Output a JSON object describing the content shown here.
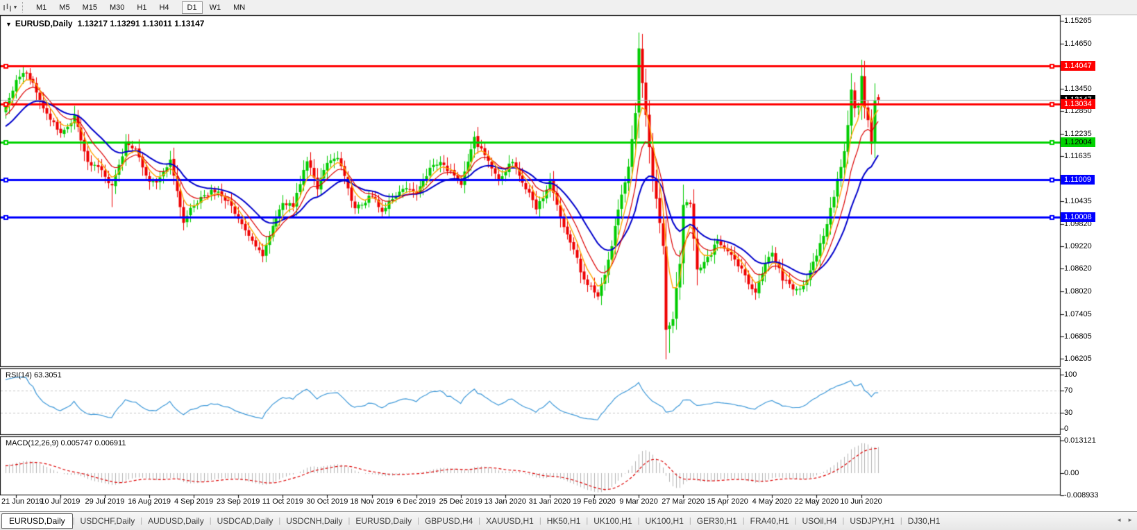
{
  "icons": {
    "dropdown_caret": "▾",
    "title_caret": "▼",
    "tab_scroll_left": "◄",
    "tab_scroll_right": "►"
  },
  "toolbar": {
    "timeframes": [
      "M1",
      "M5",
      "M15",
      "M30",
      "H1",
      "H4",
      "D1",
      "W1",
      "MN"
    ],
    "active_timeframe": "D1"
  },
  "chart": {
    "symbol": "EURUSD,Daily",
    "ohlc_text": "1.13217 1.13291 1.13011 1.13147"
  },
  "price_axis": {
    "ticks": [
      "1.15265",
      "1.14650",
      "1.13450",
      "1.12850",
      "1.12235",
      "1.11635",
      "1.10435",
      "1.09820",
      "1.09220",
      "1.08620",
      "1.08020",
      "1.07405",
      "1.06805",
      "1.06205"
    ]
  },
  "hlines": [
    {
      "price": 1.14047,
      "label": "1.14047",
      "color": "#ff0000",
      "text_color": "#ffffff"
    },
    {
      "price": 1.13034,
      "label": "1.13034",
      "color": "#ff0000",
      "text_color": "#ffffff"
    },
    {
      "price": 1.12004,
      "label": "1.12004",
      "color": "#00d200",
      "text_color": "#000000"
    },
    {
      "price": 1.11009,
      "label": "1.11009",
      "color": "#0000ff",
      "text_color": "#ffffff"
    },
    {
      "price": 1.10008,
      "label": "1.10008",
      "color": "#0000ff",
      "text_color": "#ffffff"
    }
  ],
  "current_price": {
    "value": 1.13147,
    "label": "1.13147"
  },
  "rsi": {
    "label": "RSI(14) 63.3051",
    "value": 63.3051,
    "ticks": [
      {
        "v": 100,
        "text": "100"
      },
      {
        "v": 70,
        "text": "70"
      },
      {
        "v": 30,
        "text": "30"
      },
      {
        "v": 0,
        "text": "0"
      }
    ],
    "dashed_levels": [
      70,
      30
    ]
  },
  "macd": {
    "label": "MACD(12,26,9) 0.005747 0.006911",
    "main_value": 0.005747,
    "signal_value": 0.006911,
    "ticks": [
      {
        "v": 0.013121,
        "text": "0.013121"
      },
      {
        "v": 0,
        "text": "0.00"
      },
      {
        "v": -0.008933,
        "text": "-0.008933"
      }
    ]
  },
  "date_axis": {
    "labels": [
      {
        "i": 3,
        "text": "21 Jun 2019"
      },
      {
        "i": 16,
        "text": "10 Jul 2019"
      },
      {
        "i": 29,
        "text": "29 Jul 2019"
      },
      {
        "i": 42,
        "text": "16 Aug 2019"
      },
      {
        "i": 55,
        "text": "4 Sep 2019"
      },
      {
        "i": 68,
        "text": "23 Sep 2019"
      },
      {
        "i": 81,
        "text": "11 Oct 2019"
      },
      {
        "i": 94,
        "text": "30 Oct 2019"
      },
      {
        "i": 107,
        "text": "18 Nov 2019"
      },
      {
        "i": 120,
        "text": "6 Dec 2019"
      },
      {
        "i": 133,
        "text": "25 Dec 2019"
      },
      {
        "i": 146,
        "text": "13 Jan 2020"
      },
      {
        "i": 159,
        "text": "31 Jan 2020"
      },
      {
        "i": 172,
        "text": "19 Feb 2020"
      },
      {
        "i": 185,
        "text": "9 Mar 2020"
      },
      {
        "i": 198,
        "text": "27 Mar 2020"
      },
      {
        "i": 211,
        "text": "15 Apr 2020"
      },
      {
        "i": 224,
        "text": "4 May 2020"
      },
      {
        "i": 237,
        "text": "22 May 2020"
      },
      {
        "i": 250,
        "text": "10 Jun 2020"
      }
    ]
  },
  "tabs": {
    "active_index": 0,
    "items": [
      "EURUSD,Daily",
      "USDCHF,Daily",
      "AUDUSD,Daily",
      "USDCAD,Daily",
      "USDCNH,Daily",
      "EURUSD,Daily",
      "GBPUSD,H4",
      "XAUUSD,H1",
      "HK50,H1",
      "UK100,H1",
      "UK100,H1",
      "GER30,H1",
      "FRA40,H1",
      "USOil,H4",
      "USDJPY,H1",
      "DJ30,H1"
    ]
  },
  "colors": {
    "bull": "#00cc00",
    "bear": "#ee0000",
    "ma_fast": "#ffa500",
    "ma_mid": "#dd0000",
    "ma_slow": "#0000cc",
    "current_price_line": "#a8a8a8",
    "rsi_line": "#3e99d9",
    "level_dash": "#c6c6c6",
    "macd_hist": "#b4b4b4",
    "macd_signal": "#dd0000",
    "panel_border": "#000000"
  },
  "chart_data": {
    "type": "candlestick",
    "symbol": "EURUSD",
    "timeframe": "Daily",
    "visible_range": {
      "start": "18 Jun 2019",
      "end": "16 Jun 2020"
    },
    "price_axis_range": [
      1.0598,
      1.1541
    ],
    "candle_count": 256,
    "last_candle": {
      "open": 1.13217,
      "high": 1.13291,
      "low": 1.13011,
      "close": 1.13147
    },
    "price_anchors": [
      [
        -30,
        1.114
      ],
      [
        -15,
        1.1185
      ],
      [
        -8,
        1.127
      ],
      [
        -1,
        1.129
      ],
      [
        0,
        1.1295
      ],
      [
        3,
        1.137
      ],
      [
        5,
        1.139
      ],
      [
        8,
        1.1365
      ],
      [
        11,
        1.1285
      ],
      [
        16,
        1.1225
      ],
      [
        20,
        1.127
      ],
      [
        24,
        1.115
      ],
      [
        29,
        1.1115
      ],
      [
        31,
        1.108
      ],
      [
        35,
        1.12
      ],
      [
        38,
        1.118
      ],
      [
        42,
        1.109
      ],
      [
        45,
        1.11
      ],
      [
        48,
        1.116
      ],
      [
        52,
        1.099
      ],
      [
        55,
        1.1035
      ],
      [
        58,
        1.106
      ],
      [
        61,
        1.107
      ],
      [
        65,
        1.104
      ],
      [
        68,
        1.0995
      ],
      [
        72,
        1.094
      ],
      [
        75,
        1.0895
      ],
      [
        78,
        1.097
      ],
      [
        81,
        1.104
      ],
      [
        84,
        1.103
      ],
      [
        88,
        1.115
      ],
      [
        91,
        1.108
      ],
      [
        94,
        1.115
      ],
      [
        97,
        1.1165
      ],
      [
        102,
        1.102
      ],
      [
        107,
        1.106
      ],
      [
        110,
        1.1015
      ],
      [
        114,
        1.106
      ],
      [
        117,
        1.1078
      ],
      [
        120,
        1.106
      ],
      [
        124,
        1.113
      ],
      [
        127,
        1.1145
      ],
      [
        130,
        1.112
      ],
      [
        133,
        1.109
      ],
      [
        137,
        1.1212
      ],
      [
        140,
        1.116
      ],
      [
        144,
        1.1105
      ],
      [
        148,
        1.115
      ],
      [
        151,
        1.1095
      ],
      [
        155,
        1.1023
      ],
      [
        159,
        1.1093
      ],
      [
        162,
        1.1
      ],
      [
        166,
        1.0915
      ],
      [
        169,
        1.0831
      ],
      [
        173,
        1.0788
      ],
      [
        176,
        1.088
      ],
      [
        179,
        1.1026
      ],
      [
        182,
        1.1135
      ],
      [
        184,
        1.1285
      ],
      [
        185,
        1.145
      ],
      [
        187,
        1.127
      ],
      [
        189,
        1.1105
      ],
      [
        192,
        1.092
      ],
      [
        193,
        1.0692
      ],
      [
        195,
        1.0727
      ],
      [
        197,
        1.088
      ],
      [
        198,
        1.103
      ],
      [
        200,
        1.104
      ],
      [
        202,
        1.0855
      ],
      [
        205,
        1.089
      ],
      [
        208,
        1.0935
      ],
      [
        211,
        1.091
      ],
      [
        214,
        1.0875
      ],
      [
        217,
        1.082
      ],
      [
        219,
        1.08
      ],
      [
        222,
        1.0875
      ],
      [
        224,
        1.0905
      ],
      [
        227,
        1.0835
      ],
      [
        230,
        1.0808
      ],
      [
        233,
        1.081
      ],
      [
        237,
        1.09
      ],
      [
        240,
        1.098
      ],
      [
        243,
        1.11
      ],
      [
        245,
        1.117
      ],
      [
        246,
        1.125
      ],
      [
        247,
        1.1337
      ],
      [
        248,
        1.1292
      ],
      [
        249,
        1.1294
      ],
      [
        250,
        1.1375
      ],
      [
        251,
        1.1293
      ],
      [
        252,
        1.1256
      ],
      [
        253,
        1.119
      ],
      [
        254,
        1.1308
      ],
      [
        255,
        1.13147
      ]
    ],
    "special_wicks": {
      "31": {
        "low": 1.1027
      },
      "75": {
        "low": 1.0879
      },
      "173": {
        "low": 1.0778
      },
      "185": {
        "high": 1.1495
      },
      "194": {
        "low": 1.0636
      },
      "250": {
        "high": 1.1422
      },
      "253": {
        "low": 1.1168
      }
    },
    "moving_averages": [
      {
        "name": "fast",
        "period": 5,
        "color": "#ffa500"
      },
      {
        "name": "medium",
        "period": 10,
        "color": "#dd0000"
      },
      {
        "name": "slow",
        "period": 21,
        "color": "#0000cc"
      }
    ],
    "indicators": [
      {
        "name": "RSI",
        "period": 14,
        "last_value": 63.3051,
        "levels": [
          70,
          30
        ],
        "scale": [
          0,
          100
        ]
      },
      {
        "name": "MACD",
        "params": [
          12,
          26,
          9
        ],
        "last_main": 0.005747,
        "last_signal": 0.006911,
        "scale": [
          -0.008933,
          0.013121
        ]
      }
    ],
    "horizontal_lines": [
      1.14047,
      1.13034,
      1.12004,
      1.11009,
      1.10008
    ]
  }
}
